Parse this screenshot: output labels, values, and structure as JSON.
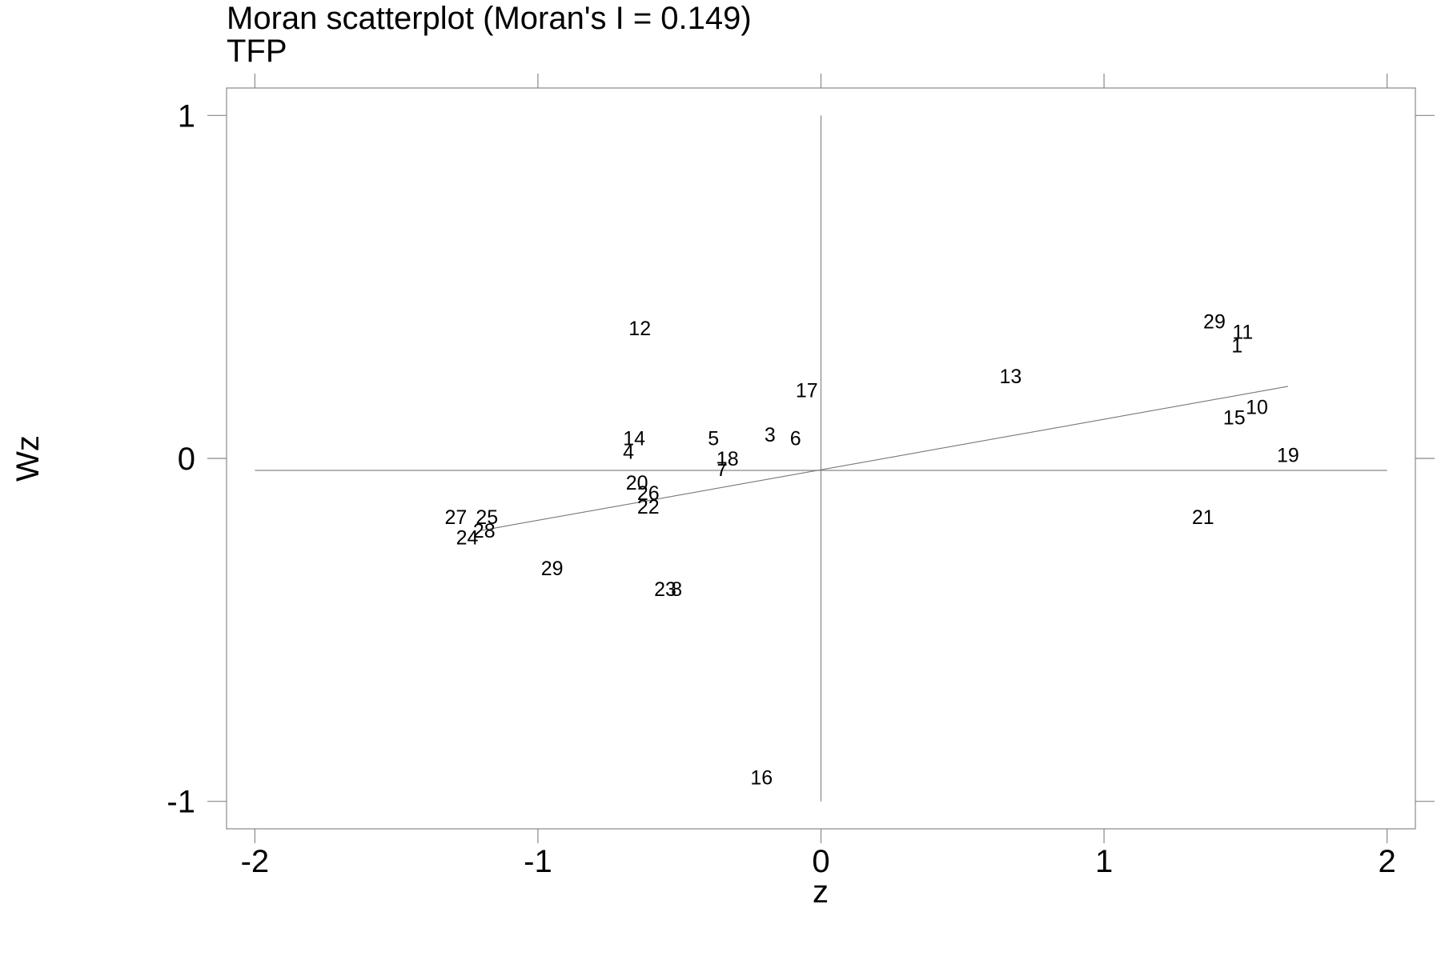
{
  "chart_data": {
    "type": "scatter",
    "title": "Moran scatterplot (Moran's I = 0.149)",
    "subtitle": "TFP",
    "xlabel": "z",
    "ylabel": "Wz",
    "xlim": [
      -2.1,
      2.1
    ],
    "ylim": [
      -1.08,
      1.08
    ],
    "x_ticks": [
      "-2",
      "-1",
      "0",
      "1",
      "2"
    ],
    "y_ticks": [
      "-1",
      "0",
      "1"
    ],
    "grid": false,
    "marker": "text labels",
    "points": [
      {
        "label": "12",
        "x": -0.64,
        "y": 0.38
      },
      {
        "label": "29",
        "x": 1.39,
        "y": 0.4
      },
      {
        "label": "11",
        "x": 1.49,
        "y": 0.37
      },
      {
        "label": "1",
        "x": 1.47,
        "y": 0.33
      },
      {
        "label": "13",
        "x": 0.67,
        "y": 0.24
      },
      {
        "label": "17",
        "x": -0.05,
        "y": 0.2
      },
      {
        "label": "10",
        "x": 1.54,
        "y": 0.15
      },
      {
        "label": "15",
        "x": 1.46,
        "y": 0.12
      },
      {
        "label": "3",
        "x": -0.18,
        "y": 0.07
      },
      {
        "label": "6",
        "x": -0.09,
        "y": 0.06
      },
      {
        "label": "14",
        "x": -0.66,
        "y": 0.06
      },
      {
        "label": "5",
        "x": -0.38,
        "y": 0.06
      },
      {
        "label": "4",
        "x": -0.68,
        "y": 0.02
      },
      {
        "label": "19",
        "x": 1.65,
        "y": 0.01
      },
      {
        "label": "18",
        "x": -0.33,
        "y": 0.0
      },
      {
        "label": "7",
        "x": -0.35,
        "y": -0.03
      },
      {
        "label": "20",
        "x": -0.65,
        "y": -0.07
      },
      {
        "label": "26",
        "x": -0.61,
        "y": -0.1
      },
      {
        "label": "22",
        "x": -0.61,
        "y": -0.14
      },
      {
        "label": "21",
        "x": 1.35,
        "y": -0.17
      },
      {
        "label": "27",
        "x": -1.29,
        "y": -0.17
      },
      {
        "label": "25",
        "x": -1.18,
        "y": -0.17
      },
      {
        "label": "28",
        "x": -1.19,
        "y": -0.21
      },
      {
        "label": "24",
        "x": -1.25,
        "y": -0.23
      },
      {
        "label": "29",
        "x": -0.95,
        "y": -0.32
      },
      {
        "label": "23",
        "x": -0.55,
        "y": -0.38
      },
      {
        "label": "8",
        "x": -0.51,
        "y": -0.38
      },
      {
        "label": "16",
        "x": -0.21,
        "y": -0.93
      }
    ],
    "fit_line": {
      "x": [
        -1.2,
        1.65
      ],
      "y": [
        -0.21,
        0.21
      ]
    },
    "reference_lines": {
      "vertical_at_x": 0,
      "horizontal_at_y": -0.035
    }
  }
}
